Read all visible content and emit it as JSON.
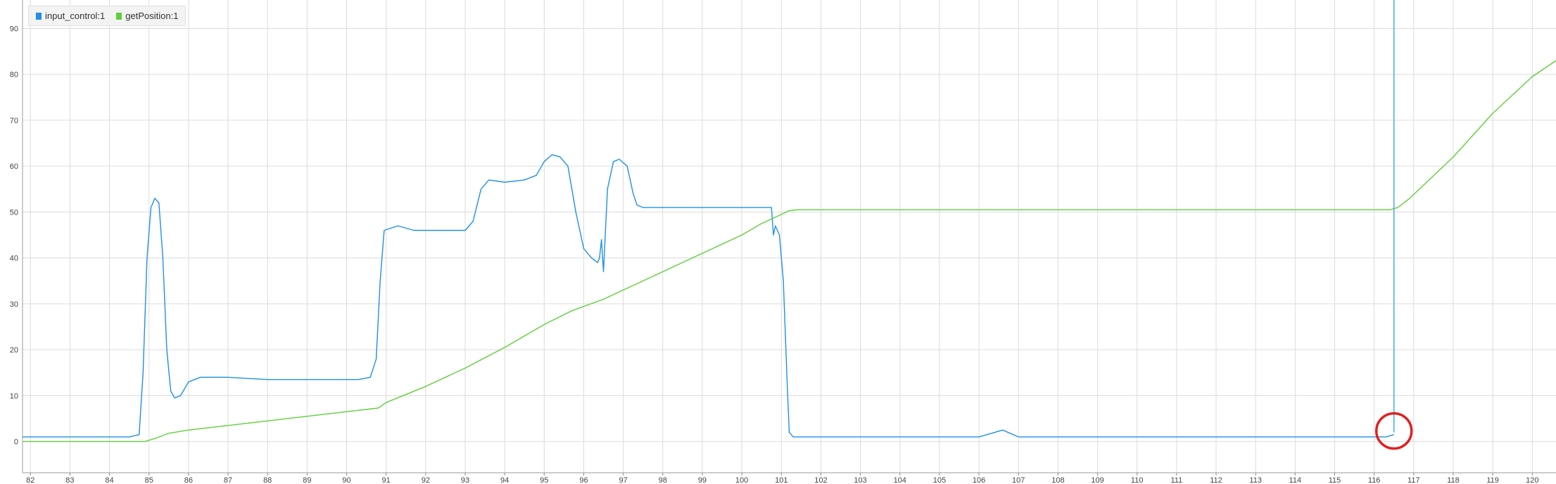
{
  "legend": {
    "items": [
      {
        "label": "input_control:1",
        "color": "#1e90e6"
      },
      {
        "label": "getPosition:1",
        "color": "#5fcf3a"
      }
    ]
  },
  "chart_data": {
    "type": "line",
    "title": "",
    "xlabel": "",
    "ylabel": "",
    "xlim": [
      81.8,
      120.6
    ],
    "ylim": [
      -6.8,
      96.2
    ],
    "grid": true,
    "legend_position": "top-left",
    "x_ticks": [
      "82",
      "83",
      "84",
      "85",
      "86",
      "87",
      "88",
      "89",
      "90",
      "91",
      "92",
      "93",
      "94",
      "95",
      "96",
      "97",
      "98",
      "99",
      "100",
      "101",
      "102",
      "103",
      "104",
      "105",
      "106",
      "107",
      "108",
      "109",
      "110",
      "111",
      "112",
      "113",
      "114",
      "115",
      "116",
      "117",
      "118",
      "119",
      "120"
    ],
    "y_ticks": [
      "0",
      "10",
      "20",
      "30",
      "40",
      "50",
      "60",
      "70",
      "80",
      "90"
    ],
    "cursor_x": 116.5,
    "highlight": {
      "x": 116.5,
      "y": 2,
      "color": "#e02020",
      "shape": "circle"
    },
    "series": [
      {
        "name": "input_control:1",
        "color": "#1e90e6",
        "x": [
          81.8,
          82.5,
          83.0,
          83.5,
          84.0,
          84.5,
          84.75,
          84.85,
          84.95,
          85.05,
          85.15,
          85.25,
          85.35,
          85.45,
          85.55,
          85.65,
          85.8,
          86.0,
          86.3,
          87.0,
          88.0,
          89.0,
          89.8,
          90.3,
          90.6,
          90.75,
          90.85,
          90.95,
          91.3,
          91.7,
          92.0,
          92.5,
          93.0,
          93.2,
          93.4,
          93.6,
          94.0,
          94.5,
          94.8,
          95.0,
          95.2,
          95.4,
          95.6,
          95.8,
          96.0,
          96.2,
          96.35,
          96.4,
          96.45,
          96.5,
          96.6,
          96.75,
          96.9,
          97.1,
          97.25,
          97.35,
          97.5,
          98.0,
          98.5,
          99.0,
          99.5,
          100.0,
          100.5,
          100.75,
          100.8,
          100.85,
          100.95,
          101.05,
          101.15,
          101.2,
          101.3,
          102.0,
          103.0,
          104.0,
          105.0,
          106.0,
          106.6,
          107.0,
          108.0,
          109.0,
          110.0,
          111.0,
          112.0,
          113.0,
          114.0,
          115.0,
          115.6,
          116.0,
          116.3,
          116.5
        ],
        "y": [
          1,
          1,
          1,
          1,
          1,
          1,
          1.5,
          15,
          40,
          51,
          53,
          52,
          40,
          20,
          11,
          9.5,
          10,
          13,
          14,
          14,
          13.5,
          13.5,
          13.5,
          13.5,
          14,
          18,
          35,
          46,
          47,
          46,
          46,
          46,
          46,
          48,
          55,
          57,
          56.5,
          57,
          58,
          61,
          62.5,
          62,
          60,
          50,
          42,
          40,
          39,
          40,
          44,
          37,
          55,
          61,
          61.5,
          60,
          54,
          51.5,
          51,
          51,
          51,
          51,
          51,
          51,
          51,
          51,
          45,
          47,
          45,
          35,
          12,
          2,
          1,
          1,
          1,
          1,
          1,
          1,
          2.5,
          1,
          1,
          1,
          1,
          1,
          1,
          1,
          1,
          1,
          1,
          1,
          1,
          1.5
        ]
      },
      {
        "name": "getPosition:1",
        "color": "#5fcf3a",
        "x": [
          81.8,
          84.5,
          84.9,
          85.2,
          85.5,
          86.0,
          88.0,
          90.0,
          90.8,
          91.0,
          92.0,
          93.0,
          94.0,
          95.0,
          95.7,
          96.5,
          97.0,
          98.0,
          99.0,
          100.0,
          100.5,
          101.0,
          101.2,
          101.4,
          102.0,
          105.0,
          110.0,
          115.0,
          116.4,
          116.6,
          116.9,
          118.0,
          119.0,
          120.0,
          120.6
        ],
        "y": [
          0,
          0,
          0,
          0.8,
          1.8,
          2.5,
          4.5,
          6.5,
          7.3,
          8.5,
          12,
          16,
          20.5,
          25.5,
          28.5,
          31,
          33,
          37,
          41,
          45,
          47.5,
          49.5,
          50.3,
          50.5,
          50.5,
          50.5,
          50.5,
          50.5,
          50.5,
          51,
          53,
          62,
          71.5,
          79.5,
          83
        ]
      }
    ]
  }
}
